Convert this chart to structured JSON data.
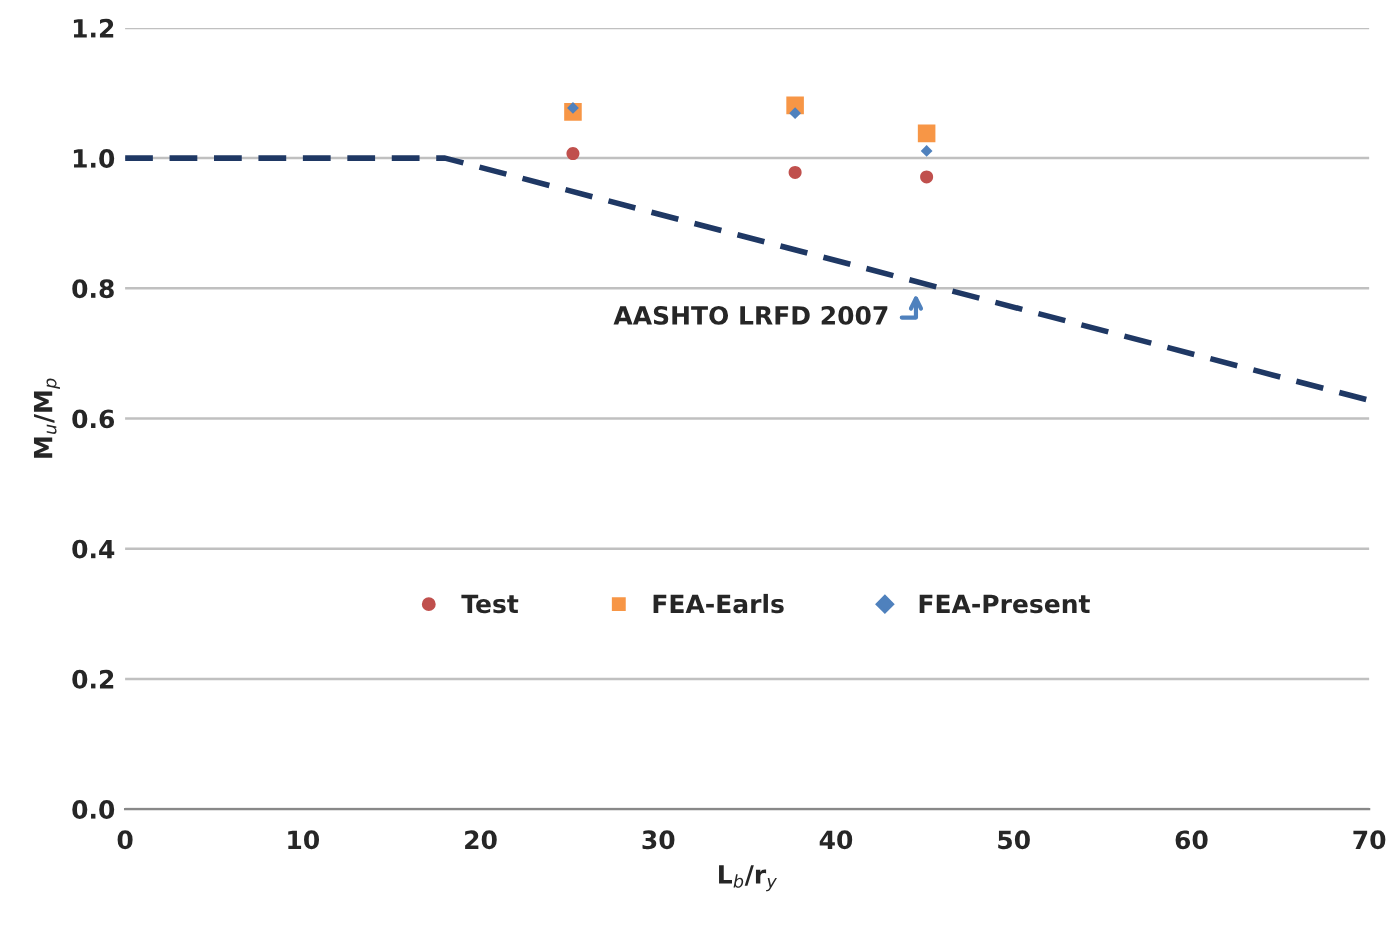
{
  "chart_data": {
    "type": "scatter",
    "xlabel": "L$_{b}$/r$_{y}$",
    "ylabel": "M$_{u}$/M$_{p}$",
    "xlim": [
      0,
      70
    ],
    "xticks": [
      0,
      10,
      20,
      30,
      40,
      50,
      60,
      70
    ],
    "ylim": [
      0,
      1.2
    ],
    "yticks": [
      {
        "value": 0,
        "label": "0.0"
      },
      {
        "value": 0.2,
        "label": "0.2"
      },
      {
        "value": 0.4,
        "label": "0.4"
      },
      {
        "value": 0.6,
        "label": "0.6"
      },
      {
        "value": 0.8,
        "label": "0.8"
      },
      {
        "value": 1.0,
        "label": "1.0"
      },
      {
        "value": 1.2,
        "label": "1.2"
      }
    ],
    "grid": "y",
    "legend": "center",
    "series": [
      {
        "name": "Test",
        "marker": "circle",
        "color": "#c0504d",
        "x": [
          25.2,
          37.7,
          45.1
        ],
        "values": [
          1.007,
          0.978,
          0.971
        ]
      },
      {
        "name": "FEA-Earls",
        "marker": "square",
        "color": "#f79646",
        "x": [
          25.2,
          37.7,
          45.1
        ],
        "values": [
          1.071,
          1.081,
          1.038
        ]
      },
      {
        "name": "FEA-Present",
        "marker": "diamond",
        "color": "#4f81bd",
        "x": [
          25.2,
          37.7,
          45.1
        ],
        "values": [
          1.077,
          1.069,
          1.011
        ]
      },
      {
        "type": "line",
        "line_style": "dashed",
        "marker": "none",
        "color": "#1f3864",
        "x": [
          0,
          18,
          70
        ],
        "values": [
          1.0,
          1.0,
          0.628
        ]
      }
    ],
    "annotations": [
      {
        "text": "AASHTO LRFD 2007",
        "x": 44.5,
        "y": 0.8
      }
    ]
  }
}
